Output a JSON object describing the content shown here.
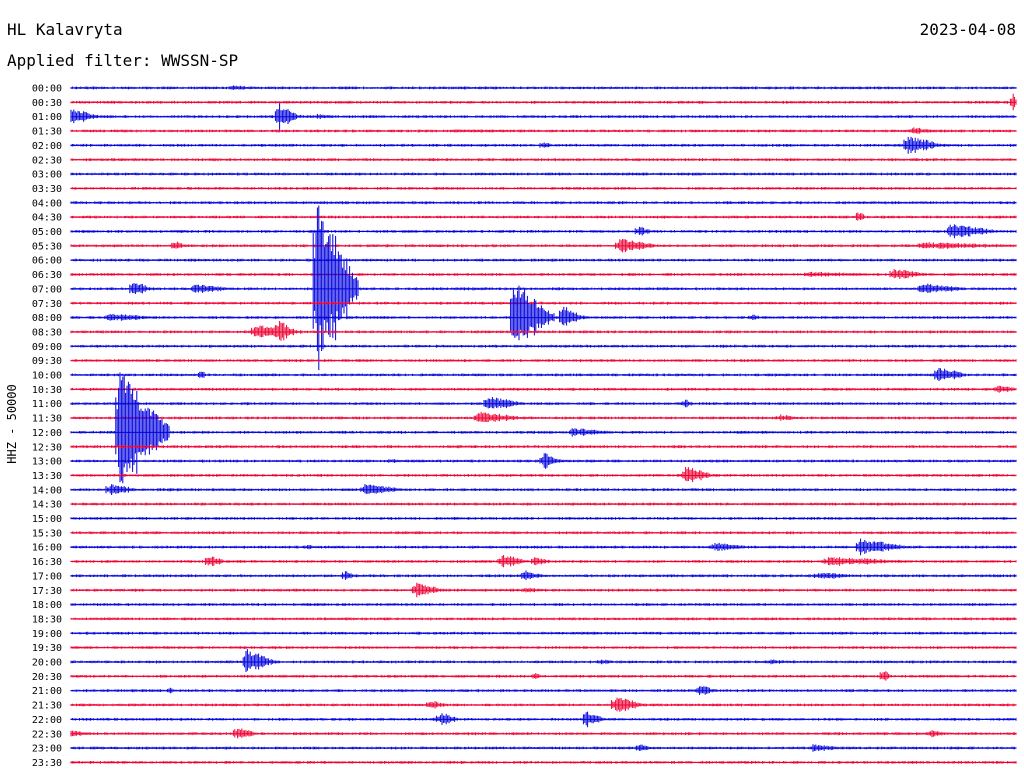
{
  "header": {
    "station": "HL Kalavryta",
    "date": "2023-04-08",
    "filter_label": "Applied filter: WWSSN-SP"
  },
  "chart_data": {
    "type": "line",
    "title": "HL Kalavryta",
    "subtitle": "Applied filter: WWSSN-SP",
    "ylabel": "HHZ - 50000",
    "xlabel": "",
    "grid": false,
    "legend": "none",
    "colors": [
      "#0000dd",
      "#ee0033"
    ],
    "row_labels": [
      "00:00",
      "00:30",
      "01:00",
      "01:30",
      "02:00",
      "02:30",
      "03:00",
      "03:30",
      "04:00",
      "04:30",
      "05:00",
      "05:30",
      "06:00",
      "06:30",
      "07:00",
      "07:30",
      "08:00",
      "08:30",
      "09:00",
      "09:30",
      "10:00",
      "10:30",
      "11:00",
      "11:30",
      "12:00",
      "12:30",
      "13:00",
      "13:30",
      "14:00",
      "14:30",
      "15:00",
      "15:30",
      "16:00",
      "16:30",
      "17:00",
      "17:30",
      "18:00",
      "18:30",
      "19:00",
      "19:30",
      "20:00",
      "20:30",
      "21:00",
      "21:30",
      "22:00",
      "22:30",
      "23:00",
      "23:30"
    ],
    "events": [
      {
        "row": 0,
        "t": 0.17,
        "amp": 3,
        "dur": 0.04
      },
      {
        "row": 0,
        "t": 0.45,
        "amp": 2,
        "dur": 0.01
      },
      {
        "row": 1,
        "t": 0.17,
        "amp": 2,
        "dur": 0.01
      },
      {
        "row": 1,
        "t": 0.997,
        "amp": 10,
        "dur": 0.004
      },
      {
        "row": 2,
        "t": 0.0,
        "amp": 9,
        "dur": 0.03
      },
      {
        "row": 2,
        "t": 0.22,
        "amp": 14,
        "dur": 0.02
      },
      {
        "row": 2,
        "t": 0.26,
        "amp": 3,
        "dur": 0.03
      },
      {
        "row": 3,
        "t": 0.4,
        "amp": 2,
        "dur": 0.15
      },
      {
        "row": 3,
        "t": 0.89,
        "amp": 4,
        "dur": 0.03
      },
      {
        "row": 4,
        "t": 0.5,
        "amp": 4,
        "dur": 0.01
      },
      {
        "row": 4,
        "t": 0.885,
        "amp": 10,
        "dur": 0.04
      },
      {
        "row": 9,
        "t": 0.2,
        "amp": 2,
        "dur": 0.01
      },
      {
        "row": 9,
        "t": 0.835,
        "amp": 8,
        "dur": 0.006
      },
      {
        "row": 10,
        "t": 0.6,
        "amp": 6,
        "dur": 0.015
      },
      {
        "row": 10,
        "t": 0.93,
        "amp": 9,
        "dur": 0.05
      },
      {
        "row": 11,
        "t": 0.11,
        "amp": 6,
        "dur": 0.01
      },
      {
        "row": 11,
        "t": 0.58,
        "amp": 8,
        "dur": 0.04
      },
      {
        "row": 11,
        "t": 0.9,
        "amp": 4,
        "dur": 0.12
      },
      {
        "row": 13,
        "t": 0.78,
        "amp": 3,
        "dur": 0.1
      },
      {
        "row": 13,
        "t": 0.87,
        "amp": 6,
        "dur": 0.04
      },
      {
        "row": 14,
        "t": 0.065,
        "amp": 9,
        "dur": 0.02
      },
      {
        "row": 14,
        "t": 0.13,
        "amp": 5,
        "dur": 0.05
      },
      {
        "row": 14,
        "t": 0.26,
        "amp": 95,
        "dur": 0.04
      },
      {
        "row": 14,
        "t": 0.9,
        "amp": 6,
        "dur": 0.05
      },
      {
        "row": 16,
        "t": 0.04,
        "amp": 5,
        "dur": 0.05
      },
      {
        "row": 16,
        "t": 0.468,
        "amp": 38,
        "dur": 0.04
      },
      {
        "row": 16,
        "t": 0.52,
        "amp": 14,
        "dur": 0.02
      },
      {
        "row": 16,
        "t": 0.72,
        "amp": 5,
        "dur": 0.01
      },
      {
        "row": 17,
        "t": 0.195,
        "amp": 8,
        "dur": 0.04
      },
      {
        "row": 17,
        "t": 0.22,
        "amp": 12,
        "dur": 0.02
      },
      {
        "row": 20,
        "t": 0.138,
        "amp": 6,
        "dur": 0.005
      },
      {
        "row": 20,
        "t": 0.918,
        "amp": 9,
        "dur": 0.03
      },
      {
        "row": 21,
        "t": 0.98,
        "amp": 4,
        "dur": 0.03
      },
      {
        "row": 22,
        "t": 0.44,
        "amp": 8,
        "dur": 0.04
      },
      {
        "row": 22,
        "t": 0.65,
        "amp": 5,
        "dur": 0.01
      },
      {
        "row": 23,
        "t": 0.43,
        "amp": 7,
        "dur": 0.05
      },
      {
        "row": 23,
        "t": 0.75,
        "amp": 4,
        "dur": 0.02
      },
      {
        "row": 24,
        "t": 0.05,
        "amp": 68,
        "dur": 0.05
      },
      {
        "row": 24,
        "t": 0.53,
        "amp": 5,
        "dur": 0.05
      },
      {
        "row": 26,
        "t": 0.5,
        "amp": 9,
        "dur": 0.02
      },
      {
        "row": 26,
        "t": 0.34,
        "amp": 3,
        "dur": 0.01
      },
      {
        "row": 27,
        "t": 0.65,
        "amp": 10,
        "dur": 0.03
      },
      {
        "row": 28,
        "t": 0.04,
        "amp": 7,
        "dur": 0.03
      },
      {
        "row": 28,
        "t": 0.31,
        "amp": 6,
        "dur": 0.05
      },
      {
        "row": 32,
        "t": 0.25,
        "amp": 3,
        "dur": 0.01
      },
      {
        "row": 32,
        "t": 0.68,
        "amp": 5,
        "dur": 0.04
      },
      {
        "row": 32,
        "t": 0.835,
        "amp": 9,
        "dur": 0.05
      },
      {
        "row": 33,
        "t": 0.145,
        "amp": 7,
        "dur": 0.02
      },
      {
        "row": 33,
        "t": 0.455,
        "amp": 8,
        "dur": 0.03
      },
      {
        "row": 33,
        "t": 0.49,
        "amp": 5,
        "dur": 0.02
      },
      {
        "row": 33,
        "t": 0.8,
        "amp": 5,
        "dur": 0.1
      },
      {
        "row": 34,
        "t": 0.29,
        "amp": 6,
        "dur": 0.01
      },
      {
        "row": 34,
        "t": 0.48,
        "amp": 6,
        "dur": 0.02
      },
      {
        "row": 34,
        "t": 0.79,
        "amp": 4,
        "dur": 0.05
      },
      {
        "row": 35,
        "t": 0.365,
        "amp": 8,
        "dur": 0.03
      },
      {
        "row": 35,
        "t": 0.48,
        "amp": 3,
        "dur": 0.03
      },
      {
        "row": 40,
        "t": 0.185,
        "amp": 14,
        "dur": 0.03
      },
      {
        "row": 40,
        "t": 0.56,
        "amp": 3,
        "dur": 0.02
      },
      {
        "row": 40,
        "t": 0.74,
        "amp": 3,
        "dur": 0.03
      },
      {
        "row": 41,
        "t": 0.49,
        "amp": 4,
        "dur": 0.01
      },
      {
        "row": 41,
        "t": 0.86,
        "amp": 8,
        "dur": 0.008
      },
      {
        "row": 42,
        "t": 0.105,
        "amp": 4,
        "dur": 0.005
      },
      {
        "row": 42,
        "t": 0.665,
        "amp": 6,
        "dur": 0.02
      },
      {
        "row": 43,
        "t": 0.38,
        "amp": 5,
        "dur": 0.02
      },
      {
        "row": 43,
        "t": 0.575,
        "amp": 10,
        "dur": 0.03
      },
      {
        "row": 44,
        "t": 0.39,
        "amp": 8,
        "dur": 0.02
      },
      {
        "row": 44,
        "t": 0.545,
        "amp": 9,
        "dur": 0.02
      },
      {
        "row": 45,
        "t": 0.0,
        "amp": 4,
        "dur": 0.02
      },
      {
        "row": 45,
        "t": 0.175,
        "amp": 9,
        "dur": 0.02
      },
      {
        "row": 45,
        "t": 0.91,
        "amp": 4,
        "dur": 0.02
      },
      {
        "row": 46,
        "t": 0.6,
        "amp": 5,
        "dur": 0.015
      },
      {
        "row": 46,
        "t": 0.785,
        "amp": 4,
        "dur": 0.04
      }
    ]
  }
}
